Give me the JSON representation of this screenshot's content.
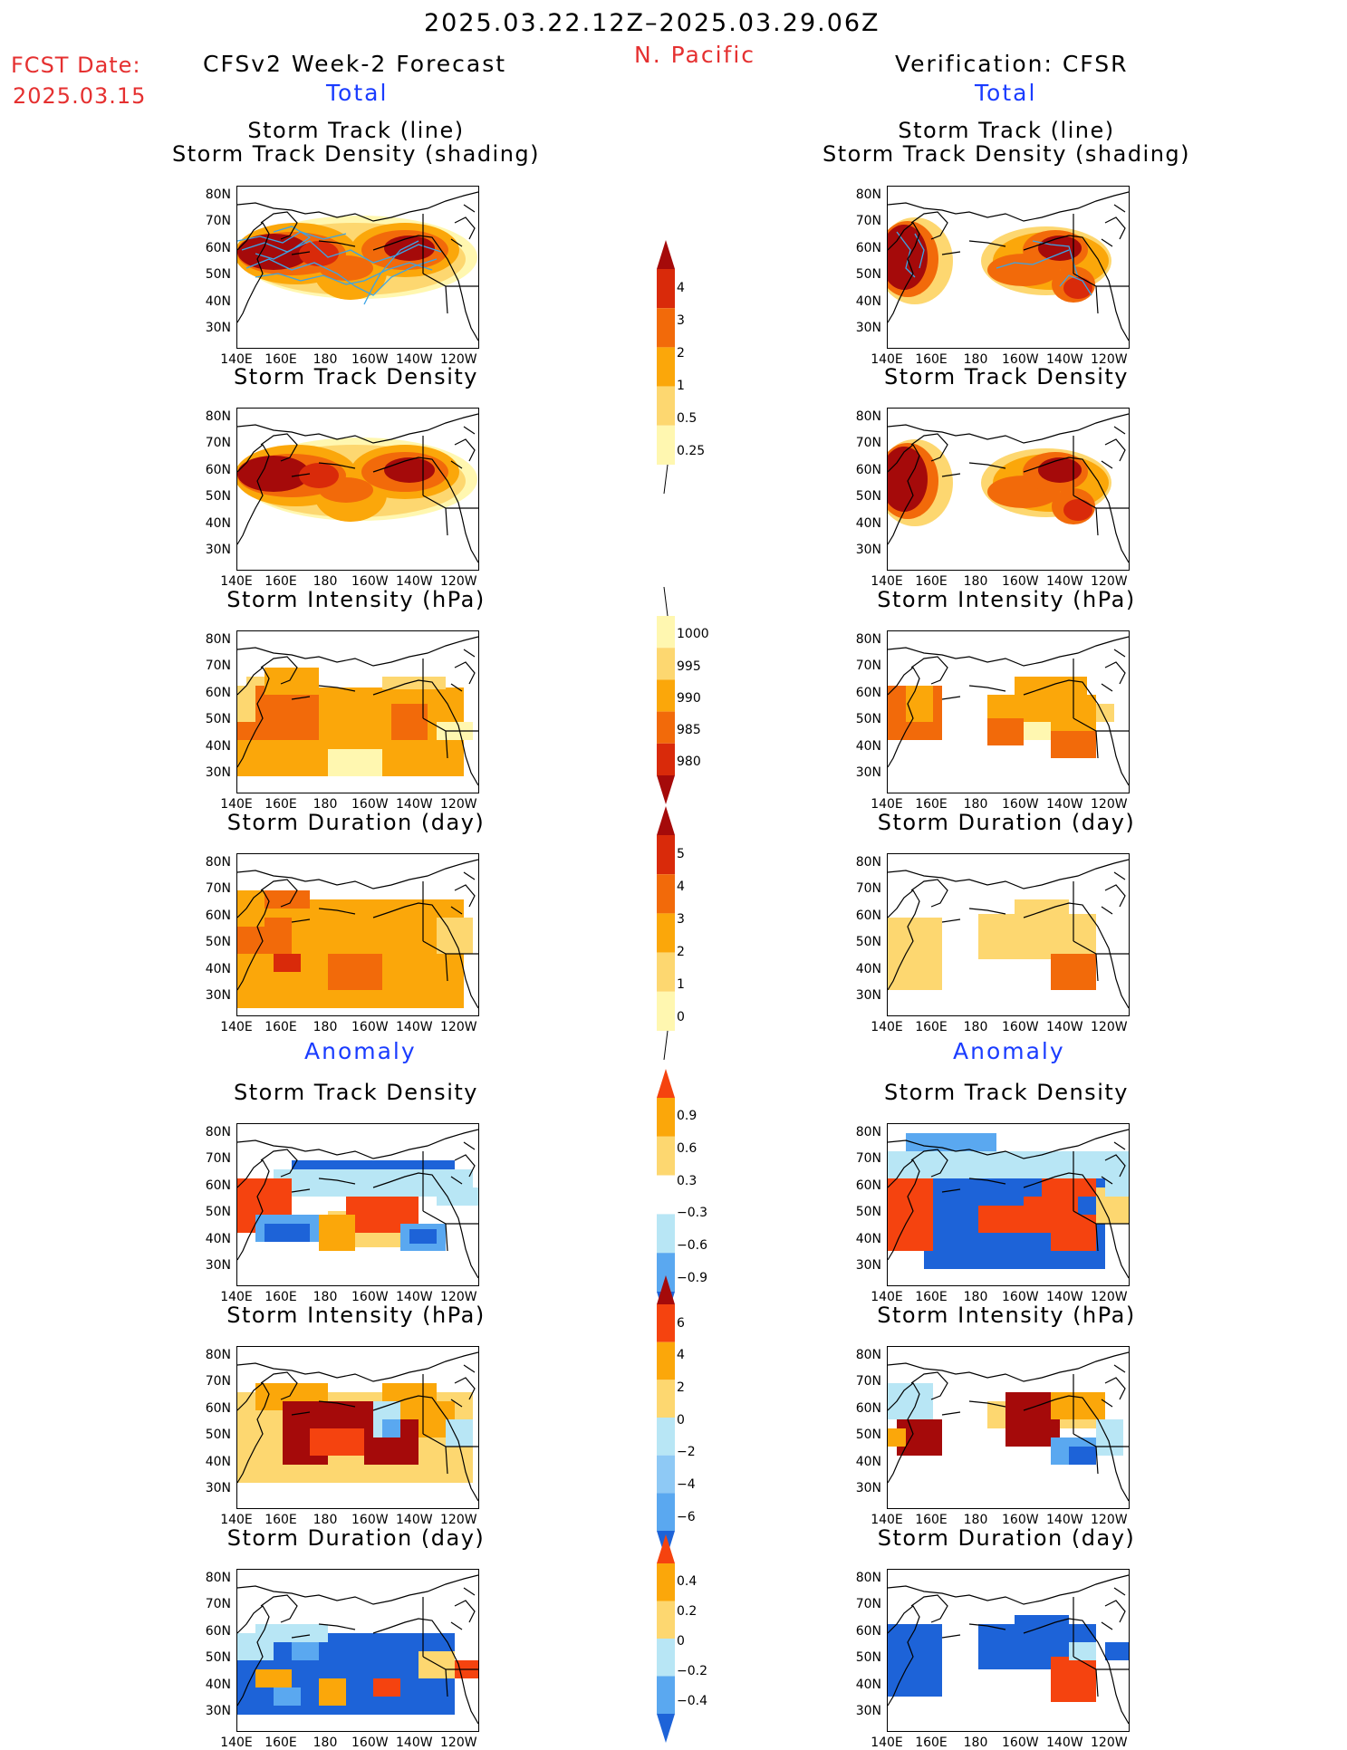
{
  "header": {
    "date_range": "2025.03.22.12Z–2025.03.29.06Z",
    "region": "N. Pacific",
    "fcst_label": "FCST Date:",
    "fcst_date": "2025.03.15",
    "left_title": "CFSv2 Week-2 Forecast",
    "right_title": "Verification: CFSR",
    "total_label": "Total",
    "anomaly_label": "Anomaly"
  },
  "panel_titles": {
    "track_line": "Storm Track (line)",
    "track_shading": "Storm Track Density (shading)",
    "density": "Storm Track Density",
    "intensity": "Storm Intensity (hPa)",
    "duration": "Storm Duration (day)"
  },
  "axes": {
    "lat_ticks": [
      "80N",
      "70N",
      "60N",
      "50N",
      "40N",
      "30N"
    ],
    "lon_ticks": [
      "140E",
      "160E",
      "180",
      "160W",
      "140W",
      "120W"
    ]
  },
  "colorbars": {
    "density_total": {
      "labels": [
        "4",
        "3",
        "2",
        "1",
        "0.5",
        "0.25"
      ],
      "colors": [
        "#a50a0a",
        "#d92a0a",
        "#f26a0a",
        "#fba70a",
        "#fdd770",
        "#fff7b0"
      ]
    },
    "intensity_total": {
      "labels": [
        "1000",
        "995",
        "990",
        "985",
        "980"
      ],
      "colors": [
        "#fff7b0",
        "#fdd770",
        "#fba70a",
        "#f26a0a",
        "#d92a0a",
        "#a50a0a"
      ]
    },
    "duration_total": {
      "labels": [
        "5",
        "4",
        "3",
        "2",
        "1",
        "0"
      ],
      "colors": [
        "#a50a0a",
        "#d92a0a",
        "#f26a0a",
        "#fba70a",
        "#fdd770",
        "#fff7b0"
      ]
    },
    "density_anom": {
      "labels": [
        "0.9",
        "0.6",
        "0.3",
        "−0.3",
        "−0.6",
        "−0.9"
      ],
      "colors": [
        "#f5430f",
        "#fba70a",
        "#fdd770",
        "#ffffff",
        "#b8e6f5",
        "#5aa8f0",
        "#1d63d8"
      ]
    },
    "intensity_anom": {
      "labels": [
        "6",
        "4",
        "2",
        "0",
        "−2",
        "−4",
        "−6"
      ],
      "colors": [
        "#a50a0a",
        "#f5430f",
        "#fba70a",
        "#fdd770",
        "#b8e6f5",
        "#8ec9f5",
        "#5aa8f0",
        "#1d63d8"
      ]
    },
    "duration_anom": {
      "labels": [
        "0.4",
        "0.2",
        "0",
        "−0.2",
        "−0.4"
      ],
      "colors": [
        "#f5430f",
        "#fba70a",
        "#fdd770",
        "#b8e6f5",
        "#5aa8f0",
        "#1d63d8"
      ]
    }
  },
  "colors": {
    "title_red": "#e53030",
    "title_blue": "#1a3cff",
    "track_line": "#3ba4e6"
  }
}
